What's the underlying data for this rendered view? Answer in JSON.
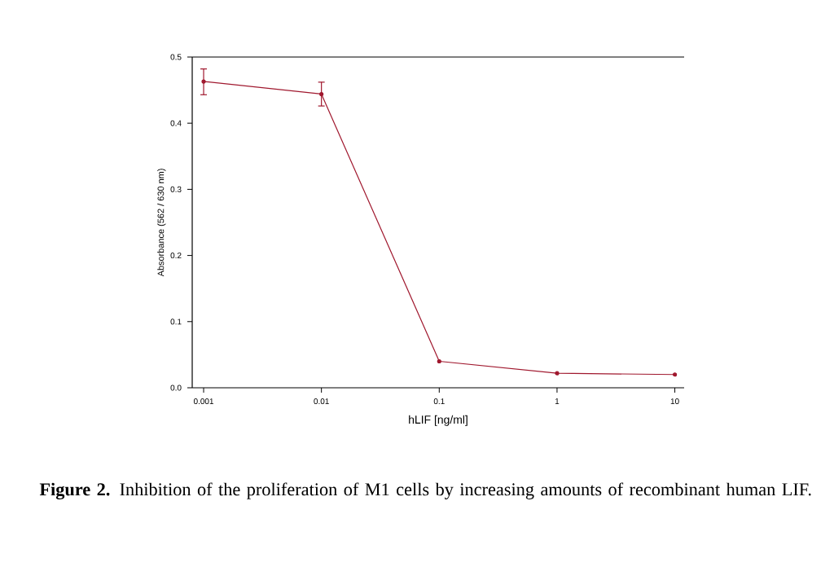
{
  "chart_data": {
    "type": "line",
    "xlabel": "hLIF [ng/ml]",
    "ylabel": "Absorbance (562 / 630 nm)",
    "x": [
      0.001,
      0.01,
      0.1,
      1,
      10
    ],
    "series": [
      {
        "color": "#a0182e",
        "values": [
          0.463,
          0.444,
          0.04,
          0.022,
          0.02
        ],
        "errors": [
          [
            0.443,
            0.482
          ],
          [
            0.426,
            0.462
          ],
          null,
          null,
          null
        ]
      }
    ],
    "log": "x",
    "marker": "circle",
    "line_style": "solid",
    "xlim": [
      0.0008,
      12
    ],
    "ylim": [
      0,
      0.5
    ],
    "xticks": [
      0.001,
      0.01,
      0.1,
      1,
      10
    ],
    "yticks": [
      {
        "value": 0,
        "label": "0.0"
      },
      {
        "value": 0.1,
        "label": "0.1"
      },
      {
        "value": 0.2,
        "label": "0.2"
      },
      {
        "value": 0.3,
        "label": "0.3"
      },
      {
        "value": 0.4,
        "label": "0.4"
      },
      {
        "value": 0.5,
        "label": "0.5"
      }
    ],
    "annotations": [
      "**Figure 2.** Inhibition of the proliferation of M1 cells by increasing amounts of recombinant human LIF."
    ]
  }
}
